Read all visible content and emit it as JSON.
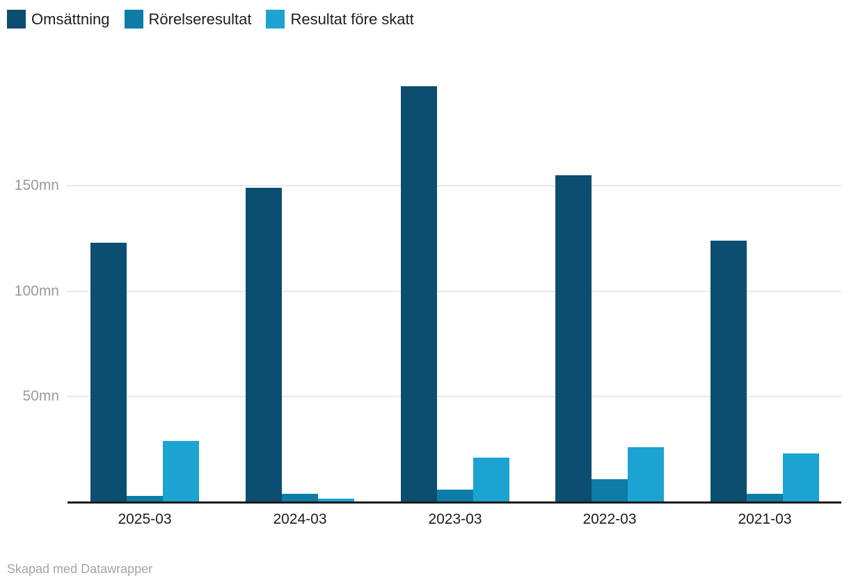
{
  "chart_data": {
    "type": "bar",
    "categories": [
      "2025-03",
      "2024-03",
      "2023-03",
      "2022-03",
      "2021-03"
    ],
    "series": [
      {
        "name": "Omsättning",
        "color": "#0b4e70",
        "values": [
          123,
          149,
          197,
          155,
          124
        ]
      },
      {
        "name": "Rörelseresultat",
        "color": "#0e7ca6",
        "values": [
          3,
          4,
          6,
          11,
          4
        ]
      },
      {
        "name": "Resultat före skatt",
        "color": "#1ca3d2",
        "values": [
          29,
          1.5,
          21,
          26,
          23
        ]
      }
    ],
    "yticks": [
      {
        "value": 50,
        "label": "50mn"
      },
      {
        "value": 100,
        "label": "100mn"
      },
      {
        "value": 150,
        "label": "150mn"
      }
    ],
    "ylim": [
      0,
      205
    ],
    "unit": "mn",
    "grid": true,
    "legend_position": "top-left",
    "title": "",
    "xlabel": "",
    "ylabel": ""
  },
  "colors": {
    "gridline": "#e9e9e9",
    "axis_line": "#1a1a1a",
    "y_tick_text": "#9a9a9a",
    "x_tick_text": "#1c1c1c",
    "legend_text": "#1d1d1d",
    "credit_text": "#a5a5a5",
    "background": "#ffffff"
  },
  "footer": {
    "credit": "Skapad med Datawrapper"
  }
}
